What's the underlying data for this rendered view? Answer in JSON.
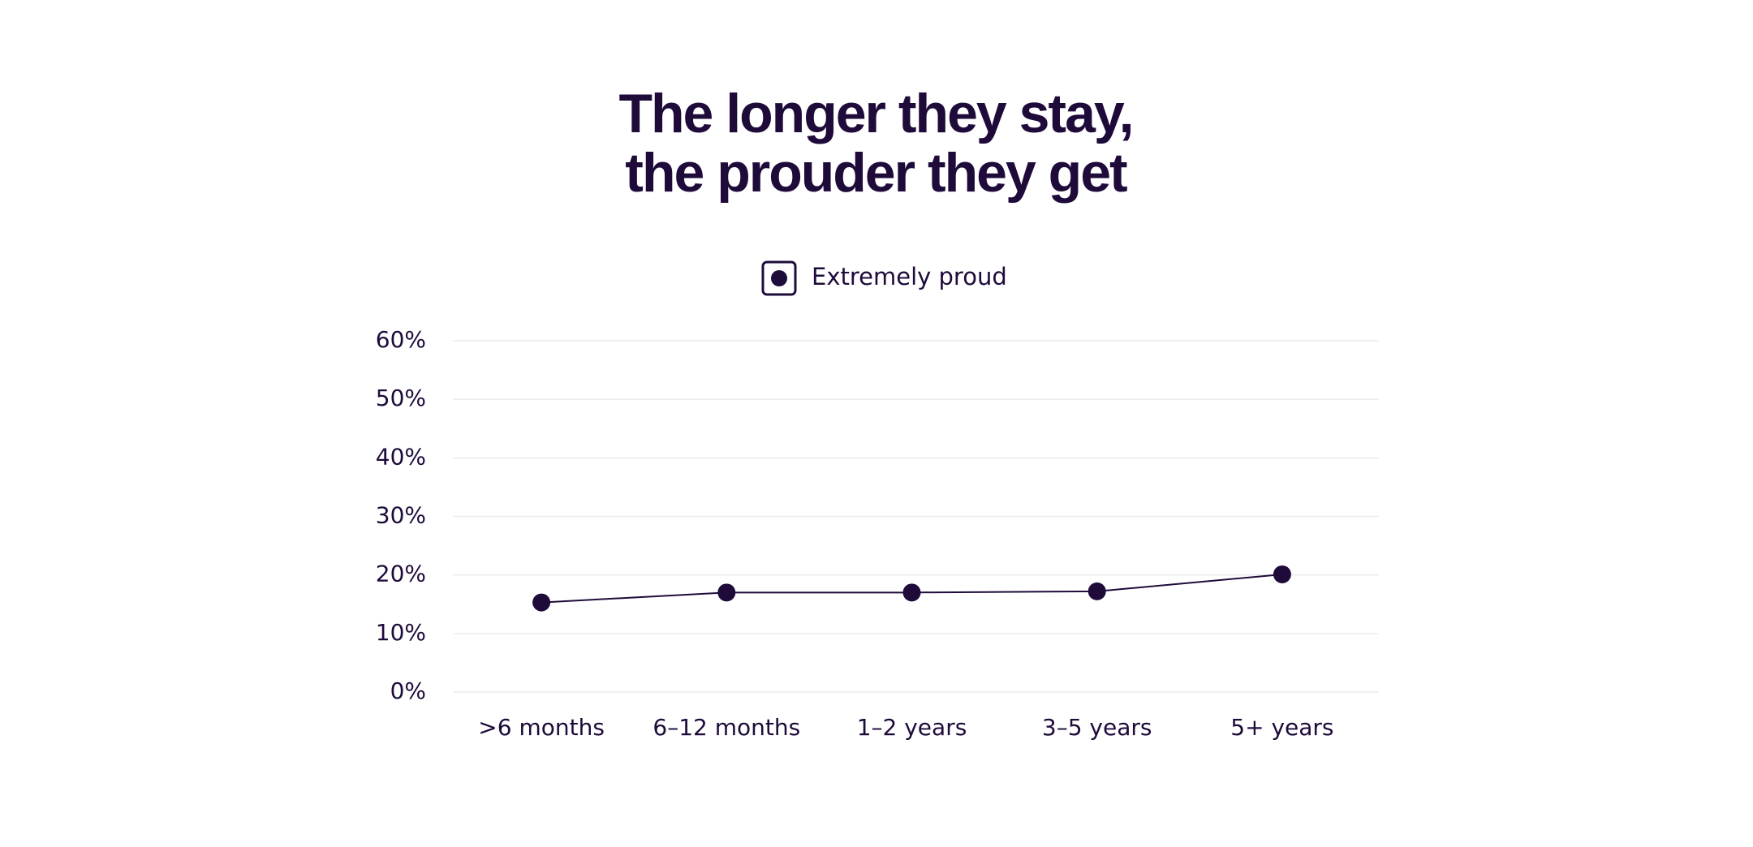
{
  "chart_data": {
    "type": "line",
    "title": [
      "The longer they stay,",
      "the prouder they get"
    ],
    "categories": [
      ">6 months",
      "6–12 months",
      "1–2 years",
      "3–5 years",
      "5+ years"
    ],
    "series": [
      {
        "name": "Extremely proud",
        "color": "#1e0b3a",
        "values": [
          15.3,
          17,
          17,
          17.2,
          20.1
        ]
      }
    ],
    "ylim": [
      0,
      60
    ],
    "yticks": [
      {
        "value": 0,
        "label": "0%"
      },
      {
        "value": 10,
        "label": "10%"
      },
      {
        "value": 20,
        "label": "20%"
      },
      {
        "value": 30,
        "label": "30%"
      },
      {
        "value": 40,
        "label": "40%"
      },
      {
        "value": 50,
        "label": "50%"
      },
      {
        "value": 60,
        "label": "60%"
      }
    ],
    "grid": true,
    "legend": "top"
  }
}
